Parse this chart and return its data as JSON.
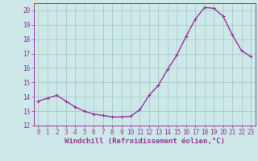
{
  "x": [
    0,
    1,
    2,
    3,
    4,
    5,
    6,
    7,
    8,
    9,
    10,
    11,
    12,
    13,
    14,
    15,
    16,
    17,
    18,
    19,
    20,
    21,
    22,
    23
  ],
  "y": [
    13.7,
    13.9,
    14.1,
    13.7,
    13.3,
    13.0,
    12.8,
    12.7,
    12.6,
    12.6,
    12.65,
    13.1,
    14.1,
    14.8,
    15.9,
    16.9,
    18.2,
    19.4,
    20.2,
    20.15,
    19.6,
    18.3,
    17.2,
    16.8
  ],
  "line_color": "#993399",
  "marker": "P",
  "marker_size": 2.5,
  "bg_color": "#cce8e8",
  "grid_color": "#aacccc",
  "xlabel": "Windchill (Refroidissement éolien,°C)",
  "ylabel": "",
  "ylim": [
    12,
    20.5
  ],
  "xlim": [
    -0.5,
    23.5
  ],
  "yticks": [
    12,
    13,
    14,
    15,
    16,
    17,
    18,
    19,
    20
  ],
  "xticks": [
    0,
    1,
    2,
    3,
    4,
    5,
    6,
    7,
    8,
    9,
    10,
    11,
    12,
    13,
    14,
    15,
    16,
    17,
    18,
    19,
    20,
    21,
    22,
    23
  ],
  "tick_color": "#993399",
  "tick_fontsize": 5.5,
  "xlabel_fontsize": 6.5,
  "line_width": 1.0
}
